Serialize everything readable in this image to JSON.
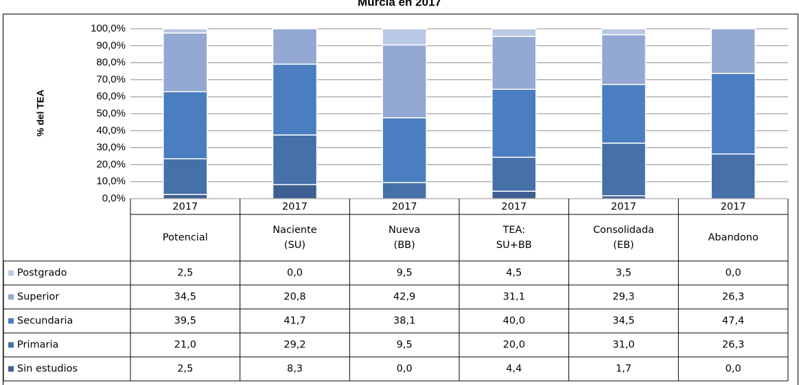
{
  "chart_data": {
    "type": "bar",
    "stacked": true,
    "title": "Murcia en 2017",
    "y_label": "% del TEA",
    "categories": [
      {
        "year": "2017",
        "label": [
          "Potencial"
        ]
      },
      {
        "year": "2017",
        "label": [
          "Naciente",
          "(SU)"
        ]
      },
      {
        "year": "2017",
        "label": [
          "Nueva",
          "(BB)"
        ]
      },
      {
        "year": "2017",
        "label": [
          "TEA:",
          "SU+BB"
        ]
      },
      {
        "year": "2017",
        "label": [
          "Consolidada",
          "(EB)"
        ]
      },
      {
        "year": "2017",
        "label": [
          "Abandono"
        ]
      }
    ],
    "series": [
      {
        "name": "Sin estudios",
        "color": "#3d5f91",
        "values": [
          2.5,
          8.3,
          0.0,
          4.4,
          1.7,
          0.0
        ],
        "value_labels": [
          "2,5",
          "8,3",
          "0,0",
          "4,4",
          "1,7",
          "0,0"
        ]
      },
      {
        "name": "Primaria",
        "color": "#4570a8",
        "values": [
          21.0,
          29.2,
          9.5,
          20.0,
          31.0,
          26.3
        ],
        "value_labels": [
          "21,0",
          "29,2",
          "9,5",
          "20,0",
          "31,0",
          "26,3"
        ]
      },
      {
        "name": "Secundaria",
        "color": "#4a7ec0",
        "values": [
          39.5,
          41.7,
          38.1,
          40.0,
          34.5,
          47.4
        ],
        "value_labels": [
          "39,5",
          "41,7",
          "38,1",
          "40,0",
          "34,5",
          "47,4"
        ]
      },
      {
        "name": "Superior",
        "color": "#93a8d2",
        "values": [
          34.5,
          20.8,
          42.9,
          31.1,
          29.3,
          26.3
        ],
        "value_labels": [
          "34,5",
          "20,8",
          "42,9",
          "31,1",
          "29,3",
          "26,3"
        ]
      },
      {
        "name": "Postgrado",
        "color": "#b9c8e4",
        "values": [
          2.5,
          0.0,
          9.5,
          4.5,
          3.5,
          0.0
        ],
        "value_labels": [
          "2,5",
          "0,0",
          "9,5",
          "4,5",
          "3,5",
          "0,0"
        ]
      }
    ],
    "ylim": [
      0,
      100
    ],
    "yticks": [
      {
        "value": 0,
        "label": "0,0%"
      },
      {
        "value": 10,
        "label": "10,0%"
      },
      {
        "value": 20,
        "label": "20,0%"
      },
      {
        "value": 30,
        "label": "30,0%"
      },
      {
        "value": 40,
        "label": "40,0%"
      },
      {
        "value": 50,
        "label": "50,0%"
      },
      {
        "value": 60,
        "label": "60,0%"
      },
      {
        "value": 70,
        "label": "70,0%"
      },
      {
        "value": 80,
        "label": "80,0%"
      },
      {
        "value": 90,
        "label": "90,0%"
      },
      {
        "value": 100,
        "label": "100,0%"
      }
    ],
    "grid": true,
    "data_table": true
  }
}
